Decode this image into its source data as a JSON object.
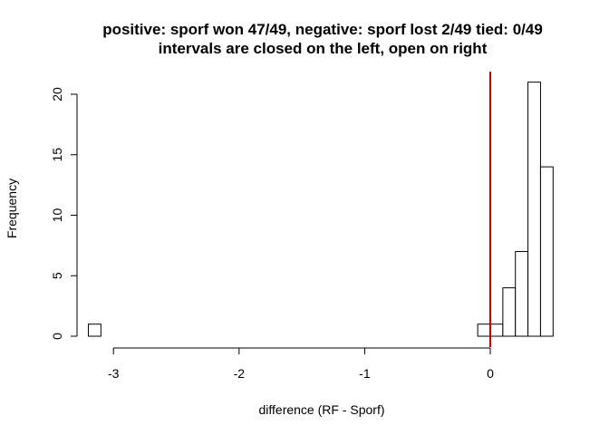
{
  "chart_data": {
    "type": "histogram",
    "title": "positive: sporf won 47/49, negative: sporf lost 2/49 tied: 0/49",
    "subtitle": "intervals are closed on the left, open on right",
    "xlabel": "difference (RF - Sporf)",
    "ylabel": "Frequency",
    "x_ticks": [
      -3,
      -2,
      -1,
      0
    ],
    "x_tick_labels": [
      "-3",
      "-2",
      "-1",
      "0"
    ],
    "y_ticks": [
      0,
      5,
      10,
      15,
      20
    ],
    "y_tick_labels": [
      "0",
      "5",
      "10",
      "15",
      "20"
    ],
    "xlim": [
      -3.2,
      0.5
    ],
    "ylim": [
      0,
      21
    ],
    "bin_width": 0.1,
    "bins": [
      {
        "start": -3.2,
        "end": -3.1,
        "count": 1
      },
      {
        "start": -3.1,
        "end": -3.0,
        "count": 0
      },
      {
        "start": -3.0,
        "end": -2.9,
        "count": 0
      },
      {
        "start": -2.9,
        "end": -2.8,
        "count": 0
      },
      {
        "start": -2.8,
        "end": -2.7,
        "count": 0
      },
      {
        "start": -2.7,
        "end": -2.6,
        "count": 0
      },
      {
        "start": -2.6,
        "end": -2.5,
        "count": 0
      },
      {
        "start": -2.5,
        "end": -2.4,
        "count": 0
      },
      {
        "start": -2.4,
        "end": -2.3,
        "count": 0
      },
      {
        "start": -2.3,
        "end": -2.2,
        "count": 0
      },
      {
        "start": -2.2,
        "end": -2.1,
        "count": 0
      },
      {
        "start": -2.1,
        "end": -2.0,
        "count": 0
      },
      {
        "start": -2.0,
        "end": -1.9,
        "count": 0
      },
      {
        "start": -1.9,
        "end": -1.8,
        "count": 0
      },
      {
        "start": -1.8,
        "end": -1.7,
        "count": 0
      },
      {
        "start": -1.7,
        "end": -1.6,
        "count": 0
      },
      {
        "start": -1.6,
        "end": -1.5,
        "count": 0
      },
      {
        "start": -1.5,
        "end": -1.4,
        "count": 0
      },
      {
        "start": -1.4,
        "end": -1.3,
        "count": 0
      },
      {
        "start": -1.3,
        "end": -1.2,
        "count": 0
      },
      {
        "start": -1.2,
        "end": -1.1,
        "count": 0
      },
      {
        "start": -1.1,
        "end": -1.0,
        "count": 0
      },
      {
        "start": -1.0,
        "end": -0.9,
        "count": 0
      },
      {
        "start": -0.9,
        "end": -0.8,
        "count": 0
      },
      {
        "start": -0.8,
        "end": -0.7,
        "count": 0
      },
      {
        "start": -0.7,
        "end": -0.6,
        "count": 0
      },
      {
        "start": -0.6,
        "end": -0.5,
        "count": 0
      },
      {
        "start": -0.5,
        "end": -0.4,
        "count": 0
      },
      {
        "start": -0.4,
        "end": -0.3,
        "count": 0
      },
      {
        "start": -0.3,
        "end": -0.2,
        "count": 0
      },
      {
        "start": -0.2,
        "end": -0.1,
        "count": 0
      },
      {
        "start": -0.1,
        "end": 0.0,
        "count": 1
      },
      {
        "start": 0.0,
        "end": 0.1,
        "count": 1
      },
      {
        "start": 0.1,
        "end": 0.2,
        "count": 4
      },
      {
        "start": 0.2,
        "end": 0.3,
        "count": 7
      },
      {
        "start": 0.3,
        "end": 0.4,
        "count": 21
      },
      {
        "start": 0.4,
        "end": 0.5,
        "count": 14
      }
    ],
    "reference_line": {
      "x": 0,
      "color": "#d40000"
    },
    "bar_fill": "#ffffff",
    "bar_stroke": "#000000"
  }
}
